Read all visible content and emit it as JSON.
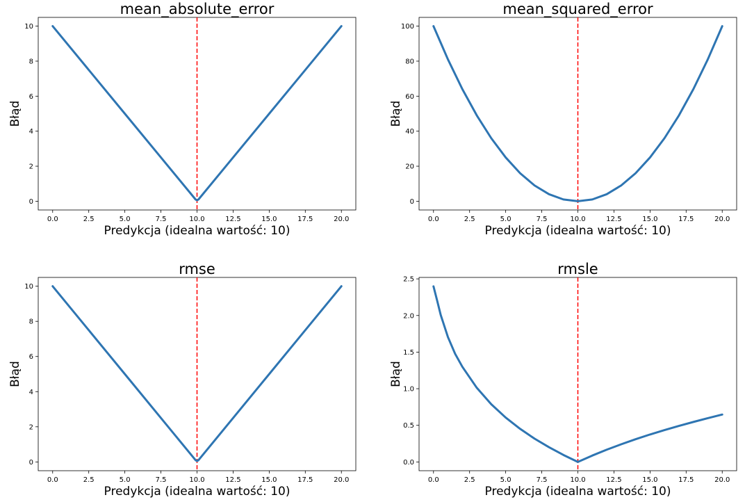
{
  "chart_data": [
    {
      "type": "line",
      "title": "mean_absolute_error",
      "xlabel": "Predykcja (idealna wartość: 10)",
      "ylabel": "Błąd",
      "xlim": [
        -1,
        21
      ],
      "ylim": [
        -0.5,
        10.5
      ],
      "xticks": [
        "0.0",
        "2.5",
        "5.0",
        "7.5",
        "10.0",
        "12.5",
        "15.0",
        "17.5",
        "20.0"
      ],
      "yticks": [
        "0",
        "2",
        "4",
        "6",
        "8",
        "10"
      ],
      "grid": false,
      "series": [
        {
          "x": [
            0,
            2.5,
            5,
            7.5,
            9.9,
            10,
            10.1,
            12.5,
            15,
            17.5,
            20
          ],
          "y": [
            10,
            7.5,
            5,
            2.5,
            0.1,
            0.05,
            0.1,
            2.5,
            5,
            7.5,
            10
          ]
        }
      ],
      "reference_line": {
        "x": 10,
        "style": "dashed",
        "color": "#ff0000"
      },
      "line_color": "#2e75b2"
    },
    {
      "type": "line",
      "title": "mean_squared_error",
      "xlabel": "Predykcja (idealna wartość: 10)",
      "ylabel": "Błąd",
      "xlim": [
        -1,
        21
      ],
      "ylim": [
        -5,
        105
      ],
      "xticks": [
        "0.0",
        "2.5",
        "5.0",
        "7.5",
        "10.0",
        "12.5",
        "15.0",
        "17.5",
        "20.0"
      ],
      "yticks": [
        "0",
        "20",
        "40",
        "60",
        "80",
        "100"
      ],
      "grid": false,
      "series": [
        {
          "x": [
            0,
            1,
            2,
            3,
            4,
            5,
            6,
            7,
            8,
            9,
            10,
            11,
            12,
            13,
            14,
            15,
            16,
            17,
            18,
            19,
            20
          ],
          "y": [
            100,
            81,
            64,
            49,
            36,
            25,
            16,
            9,
            4,
            1,
            0,
            1,
            4,
            9,
            16,
            25,
            36,
            49,
            64,
            81,
            100
          ]
        }
      ],
      "reference_line": {
        "x": 10,
        "style": "dashed",
        "color": "#ff0000"
      },
      "line_color": "#2e75b2"
    },
    {
      "type": "line",
      "title": "rmse",
      "xlabel": "Predykcja (idealna wartość: 10)",
      "ylabel": "Błąd",
      "xlim": [
        -1,
        21
      ],
      "ylim": [
        -0.5,
        10.5
      ],
      "xticks": [
        "0.0",
        "2.5",
        "5.0",
        "7.5",
        "10.0",
        "12.5",
        "15.0",
        "17.5",
        "20.0"
      ],
      "yticks": [
        "0",
        "2",
        "4",
        "6",
        "8",
        "10"
      ],
      "grid": false,
      "series": [
        {
          "x": [
            0,
            2.5,
            5,
            7.5,
            9.9,
            10,
            10.1,
            12.5,
            15,
            17.5,
            20
          ],
          "y": [
            10,
            7.5,
            5,
            2.5,
            0.1,
            0.05,
            0.1,
            2.5,
            5,
            7.5,
            10
          ]
        }
      ],
      "reference_line": {
        "x": 10,
        "style": "dashed",
        "color": "#ff0000"
      },
      "line_color": "#2e75b2"
    },
    {
      "type": "line",
      "title": "rmsle",
      "xlabel": "Predykcja (idealna wartość: 10)",
      "ylabel": "Błąd",
      "xlim": [
        -1,
        21
      ],
      "ylim": [
        -0.12,
        2.52
      ],
      "xticks": [
        "0.0",
        "2.5",
        "5.0",
        "7.5",
        "10.0",
        "12.5",
        "15.0",
        "17.5",
        "20.0"
      ],
      "yticks": [
        "0.0",
        "0.5",
        "1.0",
        "1.5",
        "2.0",
        "2.5"
      ],
      "grid": false,
      "series": [
        {
          "x": [
            0,
            0.25,
            0.5,
            1,
            1.5,
            2,
            3,
            4,
            5,
            6,
            7,
            8,
            9,
            10,
            11,
            12,
            13,
            14,
            15,
            16,
            17,
            18,
            19,
            20
          ],
          "y": [
            2.398,
            2.206,
            2.007,
            1.705,
            1.476,
            1.299,
            1.012,
            0.788,
            0.606,
            0.452,
            0.318,
            0.201,
            0.095,
            0,
            0.087,
            0.167,
            0.241,
            0.31,
            0.375,
            0.435,
            0.492,
            0.546,
            0.598,
            0.647
          ]
        }
      ],
      "reference_line": {
        "x": 10,
        "style": "dashed",
        "color": "#ff0000"
      },
      "line_color": "#2e75b2"
    }
  ]
}
